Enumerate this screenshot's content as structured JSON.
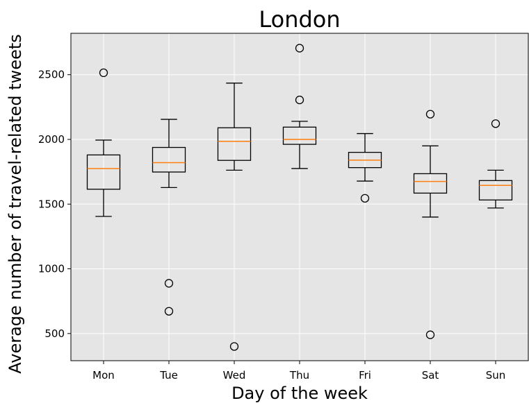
{
  "chart_data": {
    "type": "box",
    "title": "London",
    "xlabel": "Day of the week",
    "ylabel": "Average number of travel-related tweets",
    "ylim": [
      290,
      2820
    ],
    "yticks": [
      500,
      1000,
      1500,
      2000,
      2500
    ],
    "grid": true,
    "categories": [
      "Mon",
      "Tue",
      "Wed",
      "Thu",
      "Fri",
      "Sat",
      "Sun"
    ],
    "boxes": [
      {
        "whisker_low": 1405,
        "q1": 1615,
        "median": 1775,
        "q3": 1880,
        "whisker_high": 1995,
        "outliers": [
          2515
        ]
      },
      {
        "whisker_low": 1628,
        "q1": 1748,
        "median": 1820,
        "q3": 1938,
        "whisker_high": 2155,
        "outliers": [
          888,
          672
        ]
      },
      {
        "whisker_low": 1762,
        "q1": 1838,
        "median": 1985,
        "q3": 2090,
        "whisker_high": 2435,
        "outliers": [
          400
        ]
      },
      {
        "whisker_low": 1775,
        "q1": 1962,
        "median": 2000,
        "q3": 2095,
        "whisker_high": 2140,
        "outliers": [
          2705,
          2305
        ]
      },
      {
        "whisker_low": 1678,
        "q1": 1782,
        "median": 1840,
        "q3": 1900,
        "whisker_high": 2045,
        "outliers": [
          1545
        ]
      },
      {
        "whisker_low": 1400,
        "q1": 1585,
        "median": 1675,
        "q3": 1735,
        "whisker_high": 1950,
        "outliers": [
          2195,
          490
        ]
      },
      {
        "whisker_low": 1470,
        "q1": 1532,
        "median": 1645,
        "q3": 1682,
        "whisker_high": 1762,
        "outliers": [
          2122
        ]
      }
    ]
  },
  "colors": {
    "plot_background": "#e5e5e5",
    "grid": "#ffffff",
    "box": "#000000",
    "median": "#ff7f0e"
  }
}
